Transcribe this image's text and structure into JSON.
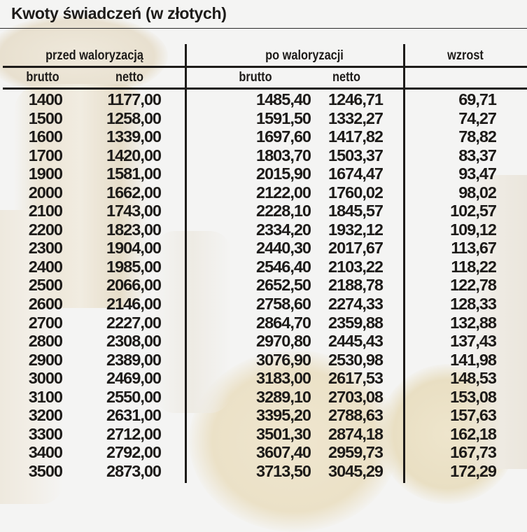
{
  "title": "Kwoty świadczeń (w złotych)",
  "headers": {
    "group_before": "przed waloryzacją",
    "group_after": "po waloryzacji",
    "group_increase": "wzrost",
    "before_gross": "brutto",
    "before_net": "netto",
    "after_gross": "brutto",
    "after_net": "netto"
  },
  "rows": [
    {
      "before_gross": "1400",
      "before_net": "1177,00",
      "after_gross": "1485,40",
      "after_net": "1246,71",
      "increase": "69,71"
    },
    {
      "before_gross": "1500",
      "before_net": "1258,00",
      "after_gross": "1591,50",
      "after_net": "1332,27",
      "increase": "74,27"
    },
    {
      "before_gross": "1600",
      "before_net": "1339,00",
      "after_gross": "1697,60",
      "after_net": "1417,82",
      "increase": "78,82"
    },
    {
      "before_gross": "1700",
      "before_net": "1420,00",
      "after_gross": "1803,70",
      "after_net": "1503,37",
      "increase": "83,37"
    },
    {
      "before_gross": "1900",
      "before_net": "1581,00",
      "after_gross": "2015,90",
      "after_net": "1674,47",
      "increase": "93,47"
    },
    {
      "before_gross": "2000",
      "before_net": "1662,00",
      "after_gross": "2122,00",
      "after_net": "1760,02",
      "increase": "98,02"
    },
    {
      "before_gross": "2100",
      "before_net": "1743,00",
      "after_gross": "2228,10",
      "after_net": "1845,57",
      "increase": "102,57"
    },
    {
      "before_gross": "2200",
      "before_net": "1823,00",
      "after_gross": "2334,20",
      "after_net": "1932,12",
      "increase": "109,12"
    },
    {
      "before_gross": "2300",
      "before_net": "1904,00",
      "after_gross": "2440,30",
      "after_net": "2017,67",
      "increase": "113,67"
    },
    {
      "before_gross": "2400",
      "before_net": "1985,00",
      "after_gross": "2546,40",
      "after_net": "2103,22",
      "increase": "118,22"
    },
    {
      "before_gross": "2500",
      "before_net": "2066,00",
      "after_gross": "2652,50",
      "after_net": "2188,78",
      "increase": "122,78"
    },
    {
      "before_gross": "2600",
      "before_net": "2146,00",
      "after_gross": "2758,60",
      "after_net": "2274,33",
      "increase": "128,33"
    },
    {
      "before_gross": "2700",
      "before_net": "2227,00",
      "after_gross": "2864,70",
      "after_net": "2359,88",
      "increase": "132,88"
    },
    {
      "before_gross": "2800",
      "before_net": "2308,00",
      "after_gross": "2970,80",
      "after_net": "2445,43",
      "increase": "137,43"
    },
    {
      "before_gross": "2900",
      "before_net": "2389,00",
      "after_gross": "3076,90",
      "after_net": "2530,98",
      "increase": "141,98"
    },
    {
      "before_gross": "3000",
      "before_net": "2469,00",
      "after_gross": "3183,00",
      "after_net": "2617,53",
      "increase": "148,53"
    },
    {
      "before_gross": "3100",
      "before_net": "2550,00",
      "after_gross": "3289,10",
      "after_net": "2703,08",
      "increase": "153,08"
    },
    {
      "before_gross": "3200",
      "before_net": "2631,00",
      "after_gross": "3395,20",
      "after_net": "2788,63",
      "increase": "157,63"
    },
    {
      "before_gross": "3300",
      "before_net": "2712,00",
      "after_gross": "3501,30",
      "after_net": "2874,18",
      "increase": "162,18"
    },
    {
      "before_gross": "3400",
      "before_net": "2792,00",
      "after_gross": "3607,40",
      "after_net": "2959,73",
      "increase": "167,73"
    },
    {
      "before_gross": "3500",
      "before_net": "2873,00",
      "after_gross": "3713,50",
      "after_net": "3045,29",
      "increase": "172,29"
    }
  ],
  "colors": {
    "background": "#f4f4f3",
    "text": "#1d1b19",
    "rules": "#1d1b19",
    "coin_tint": "#ebe1c7"
  }
}
